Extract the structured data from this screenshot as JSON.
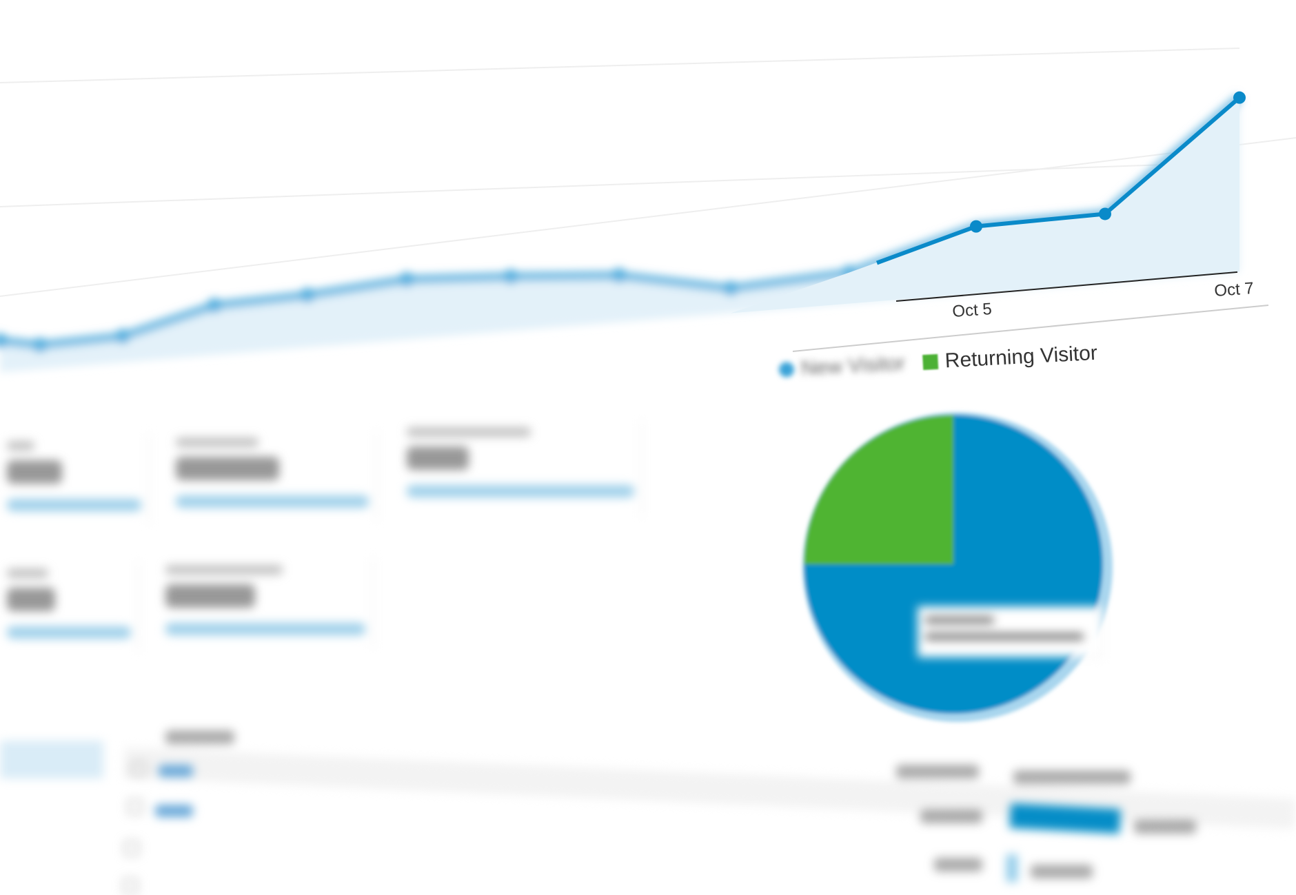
{
  "chart_data": [
    {
      "type": "area",
      "categories": [
        "",
        "",
        "",
        "",
        "",
        "",
        "",
        "",
        "",
        "",
        "Oct 5",
        "",
        "Oct 7"
      ],
      "tick_labels": {
        "oct5": "Oct 5",
        "oct7": "Oct 7"
      },
      "values": [
        46,
        35,
        38,
        72,
        76,
        87,
        79,
        68,
        36,
        45,
        97,
        100,
        253
      ],
      "grid": true,
      "colors": {
        "line": "#0a8ac9",
        "fill": "#e3f1f9"
      }
    },
    {
      "type": "pie",
      "series": [
        {
          "name": "New Visitor",
          "value": 75,
          "color": "#058dc7"
        },
        {
          "name": "Returning Visitor",
          "value": 25,
          "color": "#50b432"
        }
      ],
      "legend": "top"
    }
  ],
  "legend": {
    "new": "New Visitor",
    "returning": "Returning Visitor"
  }
}
